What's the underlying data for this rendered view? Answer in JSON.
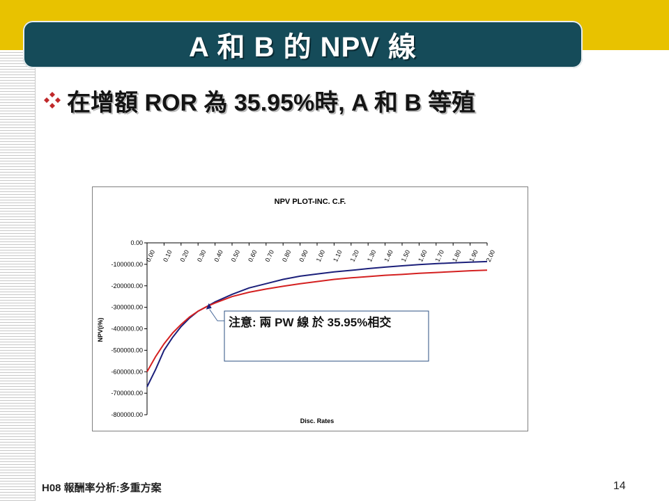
{
  "slide": {
    "title": "A 和 B 的 NPV 線",
    "bullet": "在增額 ROR 為 35.95%時, A 和 B 等殖",
    "footer_left": "H08 報酬率分析:多重方案",
    "page_number": "14"
  },
  "colors": {
    "title_bg": "#154b59",
    "band": "#e8c200",
    "series_A": "#1b1f7a",
    "series_B": "#d42020",
    "bullet_icon": "#c0282a"
  },
  "chart_data": {
    "type": "line",
    "title": "NPV PLOT-INC. C.F.",
    "xlabel": "Disc. Rates",
    "ylabel": "NPV(i%)",
    "ylim": [
      -800000,
      0
    ],
    "y_ticks": [
      "0.00",
      "-100000.00",
      "-200000.00",
      "-300000.00",
      "-400000.00",
      "-500000.00",
      "-600000.00",
      "-700000.00",
      "-800000.00"
    ],
    "x_ticks": [
      "0.00",
      "0.10",
      "0.20",
      "0.30",
      "0.40",
      "0.50",
      "0.60",
      "0.70",
      "0.80",
      "0.90",
      "1.00",
      "1.10",
      "1.20",
      "1.30",
      "1.40",
      "1.50",
      "1.60",
      "1.70",
      "1.80",
      "1.90",
      "2.00"
    ],
    "x": [
      0.0,
      0.05,
      0.1,
      0.15,
      0.2,
      0.25,
      0.3,
      0.35,
      0.4,
      0.5,
      0.6,
      0.7,
      0.8,
      0.9,
      1.0,
      1.1,
      1.2,
      1.3,
      1.4,
      1.5,
      1.6,
      1.7,
      1.8,
      1.9,
      2.0
    ],
    "series": [
      {
        "values": [
          -670000,
          -590000,
          -500000,
          -440000,
          -390000,
          -350000,
          -318000,
          -297000,
          -275000,
          -240000,
          -210000,
          -190000,
          -170000,
          -155000,
          -145000,
          -135000,
          -128000,
          -120000,
          -113000,
          -107000,
          -101000,
          -97000,
          -93000,
          -90000,
          -87000
        ]
      },
      {
        "values": [
          -600000,
          -530000,
          -470000,
          -420000,
          -380000,
          -345000,
          -318000,
          -297000,
          -280000,
          -250000,
          -230000,
          -215000,
          -202000,
          -190000,
          -180000,
          -170000,
          -163000,
          -157000,
          -151000,
          -147000,
          -142000,
          -138000,
          -134000,
          -130000,
          -127000
        ]
      }
    ],
    "annotation": "注意: 兩 PW 線 於 35.95%相交",
    "intersection_x": 0.3595,
    "grid": false
  }
}
